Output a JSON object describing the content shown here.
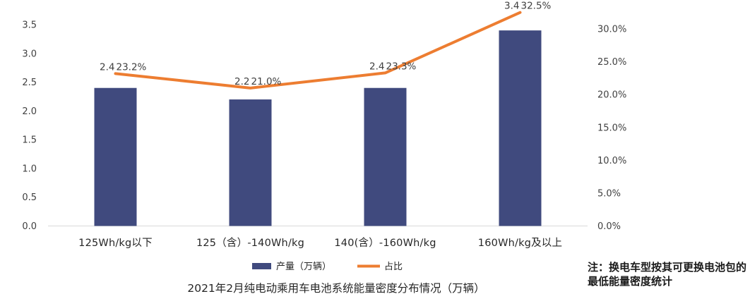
{
  "chart_data": {
    "type": "bar",
    "title": "2021年2月纯电动乘用车电池系统能量密度分布情况（万辆）",
    "categories": [
      "125Wh/kg以下",
      "125（含）-140Wh/kg",
      "140(含）-160Wh/kg",
      "160Wh/kg及以上"
    ],
    "series": [
      {
        "name": "产量（万辆）",
        "type": "bar",
        "axis": "left",
        "color": "#404a7e",
        "values": [
          2.4,
          2.2,
          2.4,
          3.4
        ],
        "labels": [
          "2.4",
          "2.2",
          "2.4",
          "3.4"
        ]
      },
      {
        "name": "占比",
        "type": "line",
        "axis": "right",
        "color": "#ed7d31",
        "values": [
          23.2,
          21.0,
          23.3,
          32.5
        ],
        "labels": [
          "23.2%",
          "21.0%",
          "23.3%",
          "32.5%"
        ]
      }
    ],
    "y_left": {
      "ylim": [
        0,
        3.5
      ],
      "ticks": [
        "0.0",
        "0.5",
        "1.0",
        "1.5",
        "2.0",
        "2.5",
        "3.0",
        "3.5"
      ]
    },
    "y_right": {
      "ylim": [
        0,
        30
      ],
      "ticks": [
        "0.0%",
        "5.0%",
        "10.0%",
        "15.0%",
        "20.0%",
        "25.0%",
        "30.0%"
      ]
    },
    "grid": false,
    "legend_position": "bottom"
  },
  "note": "注：换电车型按其可更换电池包的最低能量密度统计"
}
